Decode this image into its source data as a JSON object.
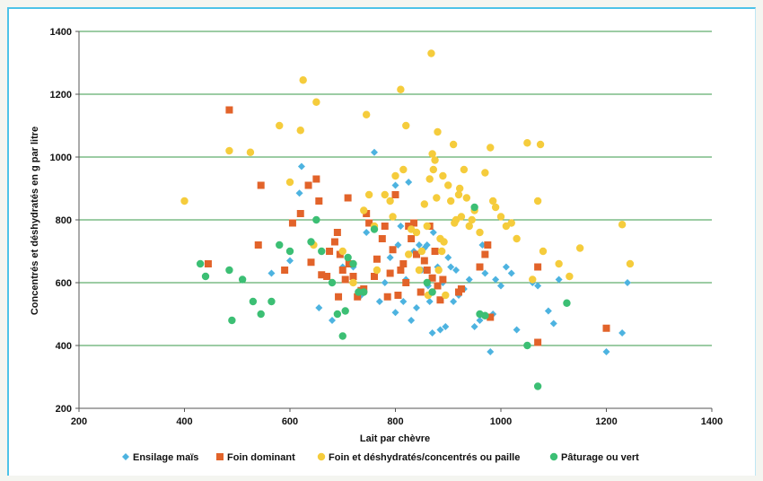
{
  "chart_data": {
    "type": "scatter",
    "xlabel": "Lait par chèvre",
    "ylabel": "Concentrés et déshydratés en g par litre",
    "xlim": [
      200,
      1400
    ],
    "ylim": [
      200,
      1400
    ],
    "xticks": [
      200,
      400,
      600,
      800,
      1000,
      1200,
      1400
    ],
    "yticks": [
      200,
      400,
      600,
      800,
      1000,
      1200,
      1400
    ],
    "grid": "horizontal",
    "legend_position": "bottom",
    "series": [
      {
        "name": "Ensilage maïs",
        "color": "#4db3e0",
        "marker": "diamond",
        "points": [
          [
            565,
            630
          ],
          [
            600,
            670
          ],
          [
            618,
            885
          ],
          [
            622,
            970
          ],
          [
            655,
            520
          ],
          [
            680,
            480
          ],
          [
            700,
            650
          ],
          [
            720,
            650
          ],
          [
            735,
            560
          ],
          [
            745,
            760
          ],
          [
            760,
            1015
          ],
          [
            770,
            540
          ],
          [
            780,
            600
          ],
          [
            790,
            680
          ],
          [
            800,
            910
          ],
          [
            800,
            505
          ],
          [
            805,
            720
          ],
          [
            810,
            780
          ],
          [
            815,
            540
          ],
          [
            820,
            610
          ],
          [
            825,
            920
          ],
          [
            830,
            480
          ],
          [
            835,
            700
          ],
          [
            840,
            520
          ],
          [
            845,
            720
          ],
          [
            850,
            640
          ],
          [
            855,
            710
          ],
          [
            860,
            720
          ],
          [
            862,
            590
          ],
          [
            865,
            540
          ],
          [
            870,
            440
          ],
          [
            872,
            760
          ],
          [
            875,
            700
          ],
          [
            880,
            650
          ],
          [
            885,
            450
          ],
          [
            890,
            600
          ],
          [
            895,
            460
          ],
          [
            900,
            680
          ],
          [
            905,
            650
          ],
          [
            910,
            540
          ],
          [
            915,
            640
          ],
          [
            920,
            560
          ],
          [
            930,
            580
          ],
          [
            940,
            610
          ],
          [
            950,
            460
          ],
          [
            960,
            480
          ],
          [
            965,
            720
          ],
          [
            970,
            630
          ],
          [
            980,
            380
          ],
          [
            985,
            500
          ],
          [
            990,
            610
          ],
          [
            1000,
            590
          ],
          [
            1010,
            650
          ],
          [
            1020,
            630
          ],
          [
            1030,
            450
          ],
          [
            1060,
            600
          ],
          [
            1070,
            590
          ],
          [
            1090,
            510
          ],
          [
            1100,
            470
          ],
          [
            1110,
            610
          ],
          [
            1200,
            380
          ],
          [
            1230,
            440
          ],
          [
            1240,
            600
          ]
        ]
      },
      {
        "name": "Foin dominant",
        "color": "#e2632a",
        "marker": "square",
        "points": [
          [
            445,
            660
          ],
          [
            485,
            1150
          ],
          [
            540,
            720
          ],
          [
            545,
            910
          ],
          [
            590,
            640
          ],
          [
            605,
            790
          ],
          [
            620,
            820
          ],
          [
            635,
            910
          ],
          [
            640,
            665
          ],
          [
            650,
            930
          ],
          [
            655,
            860
          ],
          [
            660,
            625
          ],
          [
            670,
            620
          ],
          [
            675,
            700
          ],
          [
            685,
            730
          ],
          [
            690,
            760
          ],
          [
            692,
            555
          ],
          [
            695,
            690
          ],
          [
            700,
            640
          ],
          [
            705,
            610
          ],
          [
            710,
            870
          ],
          [
            712,
            660
          ],
          [
            720,
            620
          ],
          [
            728,
            555
          ],
          [
            735,
            575
          ],
          [
            740,
            580
          ],
          [
            745,
            820
          ],
          [
            750,
            790
          ],
          [
            760,
            620
          ],
          [
            765,
            675
          ],
          [
            775,
            740
          ],
          [
            780,
            780
          ],
          [
            785,
            555
          ],
          [
            790,
            630
          ],
          [
            795,
            705
          ],
          [
            800,
            880
          ],
          [
            805,
            560
          ],
          [
            810,
            640
          ],
          [
            815,
            660
          ],
          [
            820,
            600
          ],
          [
            825,
            780
          ],
          [
            830,
            740
          ],
          [
            835,
            790
          ],
          [
            840,
            690
          ],
          [
            848,
            570
          ],
          [
            855,
            670
          ],
          [
            860,
            640
          ],
          [
            865,
            780
          ],
          [
            870,
            615
          ],
          [
            875,
            700
          ],
          [
            880,
            590
          ],
          [
            885,
            545
          ],
          [
            890,
            610
          ],
          [
            920,
            570
          ],
          [
            925,
            580
          ],
          [
            960,
            650
          ],
          [
            970,
            690
          ],
          [
            975,
            720
          ],
          [
            980,
            490
          ],
          [
            1070,
            650
          ],
          [
            1070,
            410
          ],
          [
            1200,
            455
          ]
        ]
      },
      {
        "name": "Foin et déshydratés/concentrés  ou paille",
        "color": "#f5cc3c",
        "marker": "circle",
        "points": [
          [
            400,
            860
          ],
          [
            485,
            1020
          ],
          [
            525,
            1015
          ],
          [
            580,
            1100
          ],
          [
            600,
            920
          ],
          [
            620,
            1085
          ],
          [
            625,
            1245
          ],
          [
            645,
            720
          ],
          [
            650,
            1175
          ],
          [
            700,
            700
          ],
          [
            720,
            600
          ],
          [
            740,
            830
          ],
          [
            745,
            1135
          ],
          [
            750,
            880
          ],
          [
            760,
            780
          ],
          [
            765,
            640
          ],
          [
            780,
            880
          ],
          [
            790,
            860
          ],
          [
            795,
            810
          ],
          [
            800,
            940
          ],
          [
            810,
            1215
          ],
          [
            815,
            960
          ],
          [
            820,
            1100
          ],
          [
            825,
            690
          ],
          [
            830,
            770
          ],
          [
            840,
            760
          ],
          [
            845,
            640
          ],
          [
            850,
            700
          ],
          [
            855,
            850
          ],
          [
            860,
            780
          ],
          [
            862,
            560
          ],
          [
            865,
            930
          ],
          [
            868,
            1330
          ],
          [
            870,
            1010
          ],
          [
            872,
            960
          ],
          [
            875,
            990
          ],
          [
            878,
            870
          ],
          [
            880,
            1080
          ],
          [
            882,
            640
          ],
          [
            885,
            740
          ],
          [
            888,
            700
          ],
          [
            890,
            940
          ],
          [
            892,
            730
          ],
          [
            895,
            560
          ],
          [
            900,
            910
          ],
          [
            905,
            860
          ],
          [
            910,
            1040
          ],
          [
            912,
            790
          ],
          [
            915,
            800
          ],
          [
            920,
            880
          ],
          [
            922,
            900
          ],
          [
            925,
            810
          ],
          [
            930,
            960
          ],
          [
            935,
            870
          ],
          [
            940,
            780
          ],
          [
            945,
            800
          ],
          [
            950,
            830
          ],
          [
            960,
            760
          ],
          [
            970,
            950
          ],
          [
            980,
            1030
          ],
          [
            985,
            860
          ],
          [
            990,
            840
          ],
          [
            1000,
            810
          ],
          [
            1010,
            780
          ],
          [
            1020,
            790
          ],
          [
            1030,
            740
          ],
          [
            1050,
            1045
          ],
          [
            1060,
            610
          ],
          [
            1070,
            860
          ],
          [
            1075,
            1040
          ],
          [
            1080,
            700
          ],
          [
            1110,
            660
          ],
          [
            1130,
            620
          ],
          [
            1150,
            710
          ],
          [
            1230,
            785
          ],
          [
            1245,
            660
          ]
        ]
      },
      {
        "name": "Pâturage ou vert",
        "color": "#3cbf74",
        "marker": "circle",
        "points": [
          [
            430,
            660
          ],
          [
            440,
            620
          ],
          [
            485,
            640
          ],
          [
            490,
            480
          ],
          [
            510,
            610
          ],
          [
            530,
            540
          ],
          [
            545,
            500
          ],
          [
            565,
            540
          ],
          [
            580,
            720
          ],
          [
            600,
            700
          ],
          [
            640,
            730
          ],
          [
            650,
            800
          ],
          [
            660,
            700
          ],
          [
            680,
            600
          ],
          [
            690,
            500
          ],
          [
            700,
            430
          ],
          [
            705,
            510
          ],
          [
            710,
            680
          ],
          [
            720,
            660
          ],
          [
            730,
            570
          ],
          [
            740,
            570
          ],
          [
            760,
            770
          ],
          [
            860,
            600
          ],
          [
            870,
            570
          ],
          [
            950,
            840
          ],
          [
            960,
            500
          ],
          [
            970,
            495
          ],
          [
            1050,
            400
          ],
          [
            1070,
            270
          ],
          [
            1125,
            535
          ]
        ]
      }
    ]
  }
}
